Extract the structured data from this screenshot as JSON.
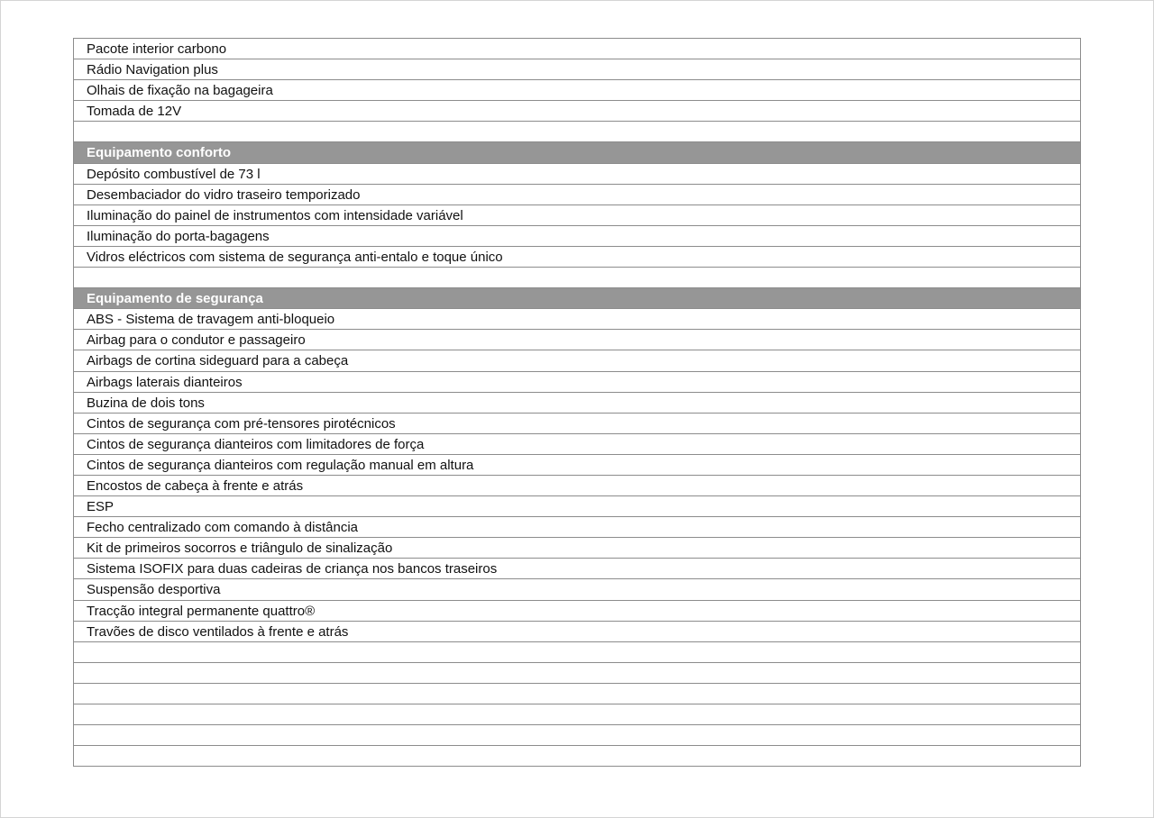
{
  "colors": {
    "header_bg": "#969696",
    "border": "#8c8c8c"
  },
  "rows": [
    {
      "text": "Pacote interior carbono"
    },
    {
      "text": "Rádio Navigation plus"
    },
    {
      "text": "Olhais de fixação na bagageira"
    },
    {
      "text": "Tomada de 12V"
    },
    {
      "text": ""
    },
    {
      "text": "Equipamento conforto",
      "header": true
    },
    {
      "text": "Depósito combustível de 73 l"
    },
    {
      "text": "Desembaciador do vidro traseiro temporizado"
    },
    {
      "text": "Iluminação do painel de instrumentos com intensidade variável"
    },
    {
      "text": "Iluminação do porta-bagagens"
    },
    {
      "text": "Vidros eléctricos com sistema de segurança anti-entalo e toque único"
    },
    {
      "text": ""
    },
    {
      "text": "Equipamento de segurança",
      "header": true
    },
    {
      "text": "ABS - Sistema de travagem anti-bloqueio"
    },
    {
      "text": "Airbag para o condutor e passageiro"
    },
    {
      "text": "Airbags de cortina sideguard para a cabeça"
    },
    {
      "text": "Airbags laterais dianteiros"
    },
    {
      "text": "Buzina de dois tons"
    },
    {
      "text": "Cintos de segurança com pré-tensores pirotécnicos"
    },
    {
      "text": "Cintos de segurança dianteiros com limitadores de força"
    },
    {
      "text": "Cintos de segurança dianteiros com regulação manual em altura"
    },
    {
      "text": "Encostos de cabeça à frente e atrás"
    },
    {
      "text": "ESP"
    },
    {
      "text": "Fecho centralizado com comando à distância"
    },
    {
      "text": "Kit de primeiros socorros e triângulo de sinalização"
    },
    {
      "text": "Sistema ISOFIX para duas cadeiras de criança nos bancos traseiros"
    },
    {
      "text": "Suspensão desportiva"
    },
    {
      "text": "Tracção integral permanente quattro®"
    },
    {
      "text": "Travões de disco ventilados à frente e atrás"
    },
    {
      "text": ""
    },
    {
      "text": ""
    },
    {
      "text": ""
    },
    {
      "text": ""
    },
    {
      "text": ""
    },
    {
      "text": ""
    }
  ]
}
